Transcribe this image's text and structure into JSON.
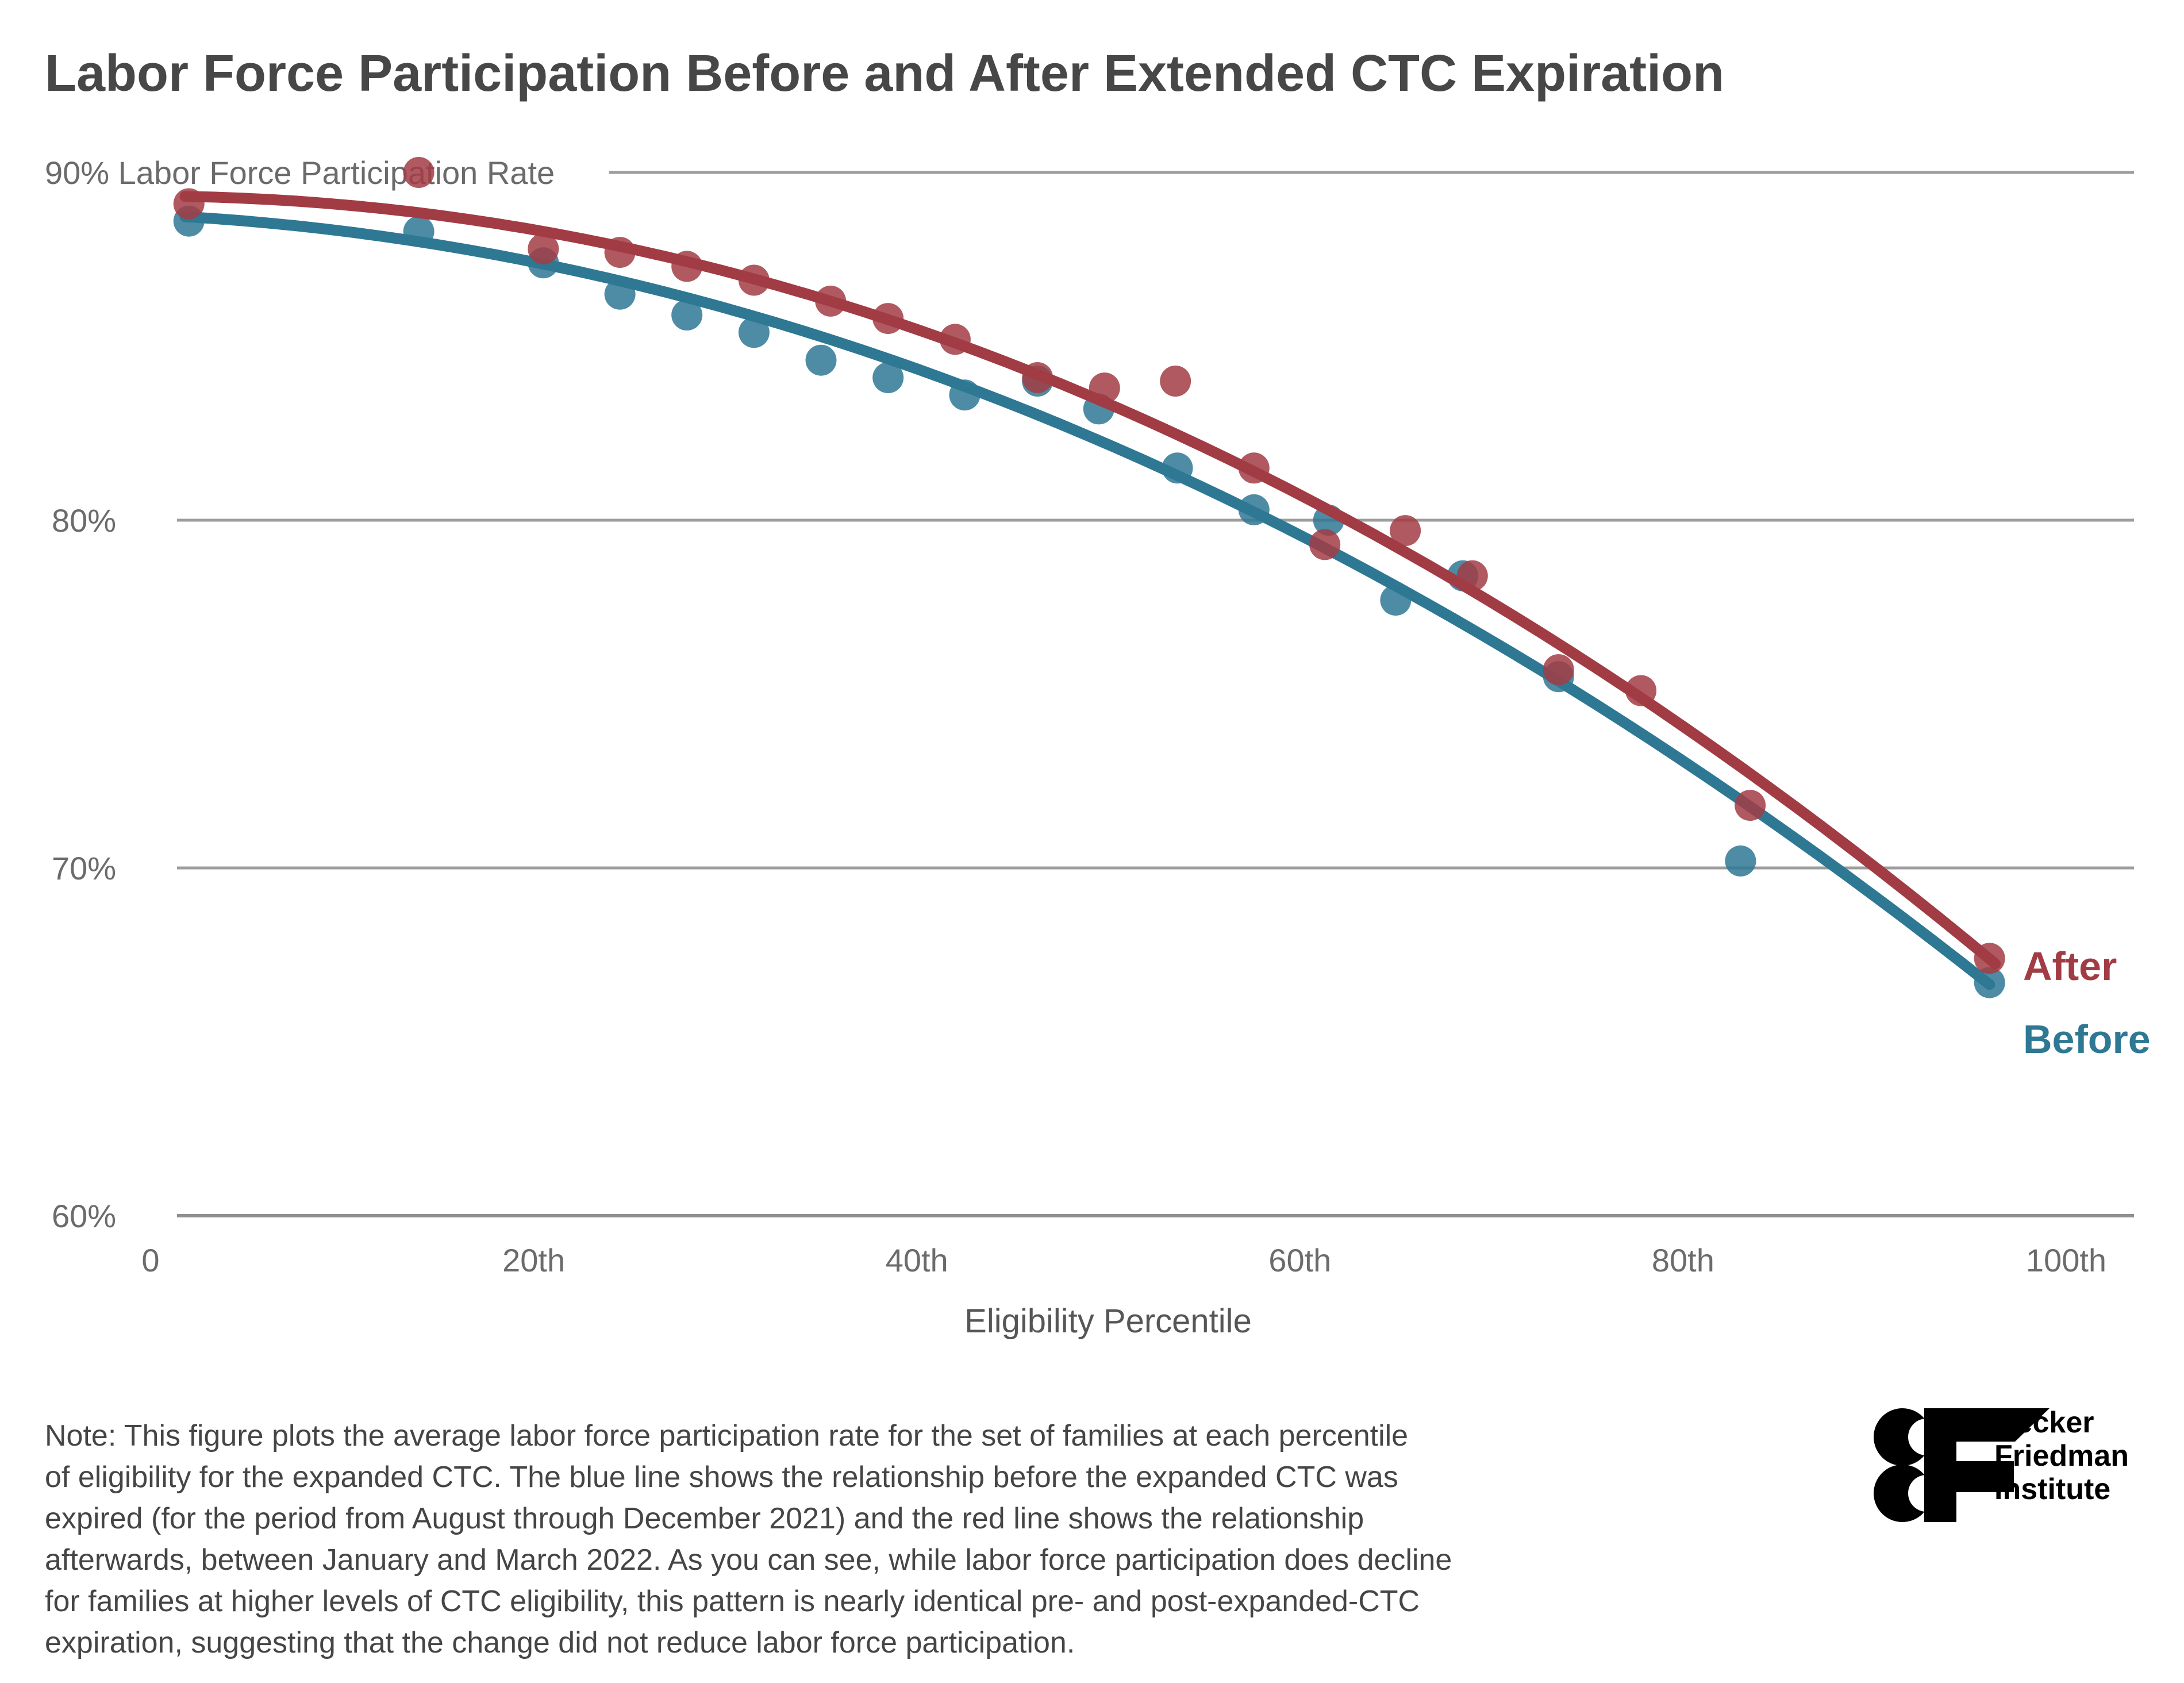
{
  "header": {
    "title": "Labor Force Participation Before and After Extended CTC Expiration"
  },
  "chart_data": {
    "type": "scatter",
    "title": "Labor Force Participation Before and After Extended CTC Expiration",
    "xlabel": "Eligibility Percentile",
    "ylabel": "Labor Force Participation Rate",
    "y_axis_top_label": "90% Labor Force Participation Rate",
    "x_ticks": [
      0,
      20,
      40,
      60,
      80,
      100
    ],
    "x_tick_labels": [
      "0",
      "20th",
      "40th",
      "60th",
      "80th",
      "100th"
    ],
    "y_ticks": [
      60,
      70,
      80
    ],
    "y_tick_labels": [
      "60%",
      "70%",
      "80%"
    ],
    "xlim": [
      0,
      100
    ],
    "ylim": [
      60,
      90
    ],
    "grid": true,
    "legend_position": "right of line ends",
    "series": [
      {
        "name": "Before",
        "color": "#2E7894",
        "points": [
          [
            2,
            88.6
          ],
          [
            14,
            88.3
          ],
          [
            20.5,
            87.4
          ],
          [
            24.5,
            86.5
          ],
          [
            28,
            85.9
          ],
          [
            31.5,
            85.4
          ],
          [
            35,
            84.6
          ],
          [
            38.5,
            84.1
          ],
          [
            42.5,
            83.6
          ],
          [
            46.3,
            84.0
          ],
          [
            49.5,
            83.2
          ],
          [
            53.6,
            81.5
          ],
          [
            57.6,
            80.3
          ],
          [
            61.5,
            80.0
          ],
          [
            65,
            77.7
          ],
          [
            68.5,
            78.4
          ],
          [
            73.5,
            75.5
          ],
          [
            83,
            70.2
          ],
          [
            96,
            66.7
          ]
        ],
        "trend": {
          "a": 88.78,
          "b": -0.0251,
          "c": -0.00214,
          "domain": [
            1.8,
            96.0
          ]
        }
      },
      {
        "name": "After",
        "color": "#A23C44",
        "points": [
          [
            2,
            89.1
          ],
          [
            14,
            90.0
          ],
          [
            20.5,
            87.8
          ],
          [
            24.5,
            87.7
          ],
          [
            28,
            87.3
          ],
          [
            31.5,
            86.9
          ],
          [
            35.5,
            86.3
          ],
          [
            38.5,
            85.8
          ],
          [
            42,
            85.2
          ],
          [
            46.3,
            84.1
          ],
          [
            49.8,
            83.8
          ],
          [
            53.5,
            84.0
          ],
          [
            57.6,
            81.5
          ],
          [
            61.3,
            79.3
          ],
          [
            65.5,
            79.7
          ],
          [
            69,
            78.4
          ],
          [
            73.5,
            75.7
          ],
          [
            77.8,
            75.1
          ],
          [
            83.5,
            71.8
          ],
          [
            96,
            67.4
          ]
        ],
        "trend": {
          "a": 89.32,
          "b": -0.001,
          "c": -0.00237,
          "domain": [
            1.8,
            96.3
          ]
        }
      }
    ]
  },
  "legend": {
    "after_label": "After",
    "before_label": "Before"
  },
  "note": {
    "lines": [
      "Note: This figure plots the average labor force participation rate for the set of families at each percentile",
      "of eligibility for the expanded CTC. The blue line shows the relationship before the expanded CTC was",
      "expired (for the period from August through December 2021) and the red line shows the relationship",
      "afterwards, between January and March 2022. As you can see, while labor force participation does decline",
      "for families at higher levels of CTC eligibility, this pattern is nearly identical pre- and post-expanded-CTC",
      "expiration, suggesting that the change did not reduce labor force participation."
    ]
  },
  "logo": {
    "monogram": "BF",
    "lines": [
      "Becker",
      "Friedman",
      "Institute"
    ]
  },
  "colors": {
    "after_red": "#A23C44",
    "before_blue": "#2E7894",
    "gridline_gray": "#9D9D9D",
    "axis_line_gray": "#8F8F8F",
    "title_gray": "#474747",
    "tick_gray": "#6B6B6B",
    "note_gray": "#454545",
    "background": "#FFFFFF"
  }
}
